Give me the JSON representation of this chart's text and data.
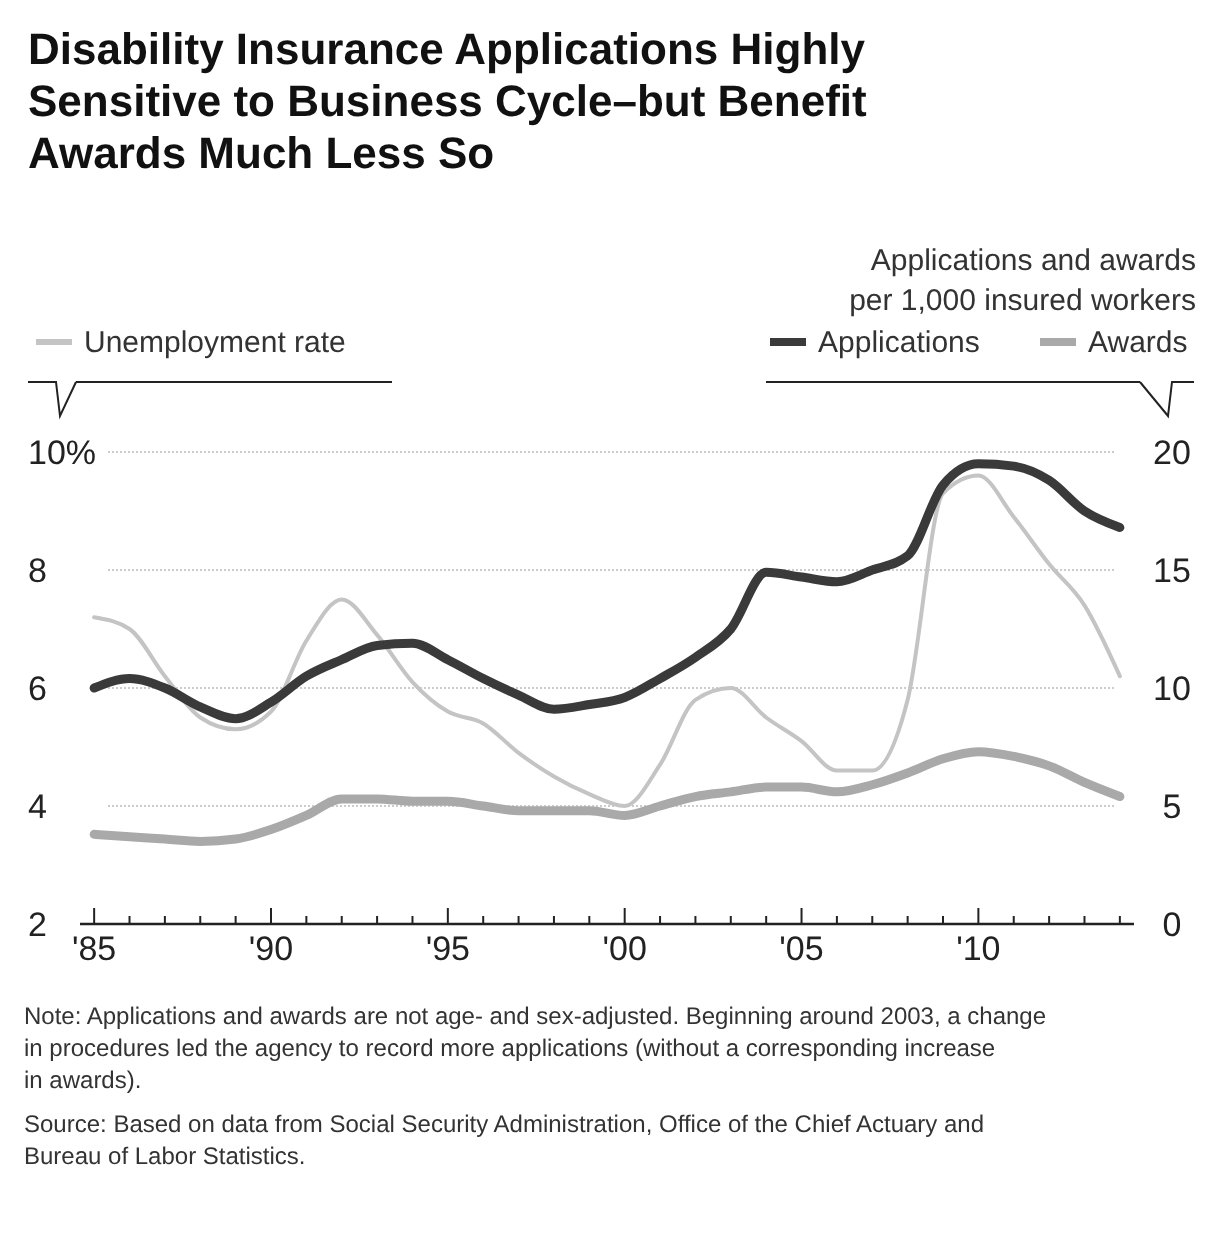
{
  "chart_data": {
    "type": "line",
    "title": "Disability Insurance Applications Highly Sensitive to Business Cycle–but Benefit Awards Much Less So",
    "y2label": "Applications and awards per 1,000 insured workers",
    "x": [
      1985,
      1986,
      1987,
      1988,
      1989,
      1990,
      1991,
      1992,
      1993,
      1994,
      1995,
      1996,
      1997,
      1998,
      1999,
      2000,
      2001,
      2002,
      2003,
      2004,
      2005,
      2006,
      2007,
      2008,
      2009,
      2010,
      2011,
      2012,
      2013,
      2014
    ],
    "xlim": [
      1984.6,
      2014.4
    ],
    "xticks": [
      {
        "value": 1985,
        "label": "'85"
      },
      {
        "value": 1986,
        "label": null
      },
      {
        "value": 1987,
        "label": null
      },
      {
        "value": 1988,
        "label": null
      },
      {
        "value": 1989,
        "label": null
      },
      {
        "value": 1990,
        "label": "'90"
      },
      {
        "value": 1991,
        "label": null
      },
      {
        "value": 1992,
        "label": null
      },
      {
        "value": 1993,
        "label": null
      },
      {
        "value": 1994,
        "label": null
      },
      {
        "value": 1995,
        "label": "'95"
      },
      {
        "value": 1996,
        "label": null
      },
      {
        "value": 1997,
        "label": null
      },
      {
        "value": 1998,
        "label": null
      },
      {
        "value": 1999,
        "label": null
      },
      {
        "value": 2000,
        "label": "'00"
      },
      {
        "value": 2001,
        "label": null
      },
      {
        "value": 2002,
        "label": null
      },
      {
        "value": 2003,
        "label": null
      },
      {
        "value": 2004,
        "label": null
      },
      {
        "value": 2005,
        "label": "'05"
      },
      {
        "value": 2006,
        "label": null
      },
      {
        "value": 2007,
        "label": null
      },
      {
        "value": 2008,
        "label": null
      },
      {
        "value": 2009,
        "label": null
      },
      {
        "value": 2010,
        "label": "'10"
      },
      {
        "value": 2011,
        "label": null
      },
      {
        "value": 2012,
        "label": null
      },
      {
        "value": 2013,
        "label": null
      },
      {
        "value": 2014,
        "label": null
      }
    ],
    "ylim": [
      2,
      10
    ],
    "yticks": [
      2,
      4,
      6,
      8,
      {
        "value": 10,
        "label": "10%"
      }
    ],
    "y2lim": [
      0,
      20
    ],
    "y2ticks": [
      0,
      5,
      10,
      15,
      20
    ],
    "grid": "y",
    "legend": "top",
    "line_style": "solid",
    "series": [
      {
        "name": "Unemployment rate",
        "color": "#c4c4c4",
        "values": [
          7.2,
          7.0,
          6.2,
          5.5,
          5.3,
          5.6,
          6.8,
          7.5,
          6.9,
          6.1,
          5.6,
          5.4,
          4.9,
          4.5,
          4.2,
          4.0,
          4.7,
          5.8,
          6.0,
          5.5,
          5.1,
          4.6,
          4.6,
          5.8,
          9.3,
          9.6,
          8.9,
          8.1,
          7.4,
          6.2
        ]
      },
      {
        "name": "Applications",
        "color": "#3a3a3a",
        "axis": "y2",
        "values": [
          10.0,
          10.4,
          10.0,
          9.2,
          8.7,
          9.4,
          10.5,
          11.2,
          11.8,
          11.9,
          11.2,
          10.4,
          9.7,
          9.1,
          9.3,
          9.6,
          10.4,
          11.3,
          12.5,
          14.9,
          14.7,
          14.5,
          15.0,
          15.6,
          18.6,
          19.5,
          19.4,
          18.8,
          17.5,
          16.8
        ]
      },
      {
        "name": "Awards",
        "color": "#a9a9a9",
        "axis": "y2",
        "values": [
          3.8,
          3.7,
          3.6,
          3.5,
          3.6,
          4.0,
          4.6,
          5.3,
          5.3,
          5.2,
          5.2,
          5.0,
          4.8,
          4.8,
          4.8,
          4.6,
          5.0,
          5.4,
          5.6,
          5.8,
          5.8,
          5.6,
          5.9,
          6.4,
          7.0,
          7.3,
          7.1,
          6.7,
          6.0,
          5.4
        ]
      }
    ],
    "annotations": [
      "Note: Applications and awards are not age- and sex-adjusted. Beginning around 2003, a change in procedures led the agency to record more applications (without a corresponding increase in awards).",
      "Source: Based on data from Social Security Administration, Office of the Chief Actuary and Bureau of Labor Statistics."
    ]
  }
}
